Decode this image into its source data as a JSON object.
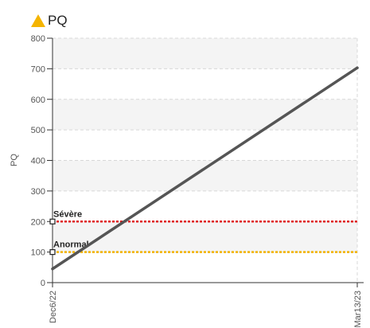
{
  "chart_data": {
    "type": "line",
    "title": "PQ",
    "ylabel": "PQ",
    "xlabel": "",
    "ylim": [
      0,
      800
    ],
    "yticks": [
      0,
      100,
      200,
      300,
      400,
      500,
      600,
      700,
      800
    ],
    "x_tick_labels": [
      "Dec6/22",
      "Mar13/23"
    ],
    "series": [
      {
        "x": [
          "Dec6/22",
          "Mar13/23"
        ],
        "values": [
          45,
          703
        ]
      }
    ],
    "thresholds": [
      {
        "label": "Sévère",
        "value": 200,
        "color": "#e02020"
      },
      {
        "label": "Anormal",
        "value": 100,
        "color": "#f2b200"
      }
    ],
    "grid": true
  }
}
